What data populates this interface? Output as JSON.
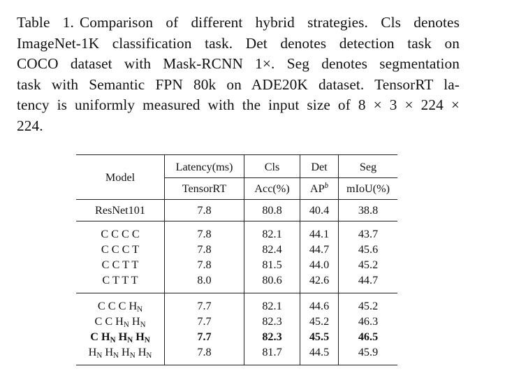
{
  "caption": {
    "label": "Table 1.",
    "lines": [
      "Comparison of different hybrid strategies. Cls denotes",
      "ImageNet-1K classification task. Det denotes detection task on",
      "COCO dataset with Mask-RCNN 1×. Seg denotes segmentation",
      "task with Semantic FPN 80k on ADE20K dataset. TensorRT la-",
      "tency is uniformly measured with the input size of 8 × 3 × 224 ×",
      "224."
    ]
  },
  "table": {
    "header": {
      "model": "Model",
      "latency": "Latency(ms)",
      "cls": "Cls",
      "det": "Det",
      "seg": "Seg",
      "latency_sub": "TensorRT",
      "cls_sub": "Acc(%)",
      "det_sub_base": "AP",
      "det_sub_sup": "b",
      "seg_sub": "mIoU(%)"
    },
    "baseline": {
      "model": "ResNet101",
      "latency": "7.8",
      "cls": "80.8",
      "det": "40.4",
      "seg": "38.8"
    },
    "group1": [
      {
        "model": "C C C C",
        "latency": "7.8",
        "cls": "82.1",
        "det": "44.1",
        "seg": "43.7"
      },
      {
        "model": "C C C T",
        "latency": "7.8",
        "cls": "82.4",
        "det": "44.7",
        "seg": "45.6"
      },
      {
        "model": "C C T T",
        "latency": "7.8",
        "cls": "81.5",
        "det": "44.0",
        "seg": "45.2"
      },
      {
        "model": "C T T T",
        "latency": "8.0",
        "cls": "80.6",
        "det": "42.6",
        "seg": "44.7"
      }
    ],
    "group2": [
      {
        "model_parts": [
          "C C C ",
          "H",
          "N"
        ],
        "latency": "7.7",
        "cls": "82.1",
        "det": "44.6",
        "seg": "45.2"
      },
      {
        "model_parts": [
          "C C ",
          "H",
          "N",
          " H",
          "N"
        ],
        "latency": "7.7",
        "cls": "82.3",
        "det": "45.2",
        "seg": "46.3"
      },
      {
        "model_parts": [
          "C ",
          "H",
          "N",
          " H",
          "N",
          " H",
          "N"
        ],
        "latency": "7.7",
        "cls": "82.3",
        "det": "45.5",
        "seg": "46.5"
      },
      {
        "model_parts": [
          "H",
          "N",
          " H",
          "N",
          " H",
          "N",
          " H",
          "N"
        ],
        "latency": "7.8",
        "cls": "81.7",
        "det": "44.5",
        "seg": "45.9"
      }
    ]
  }
}
